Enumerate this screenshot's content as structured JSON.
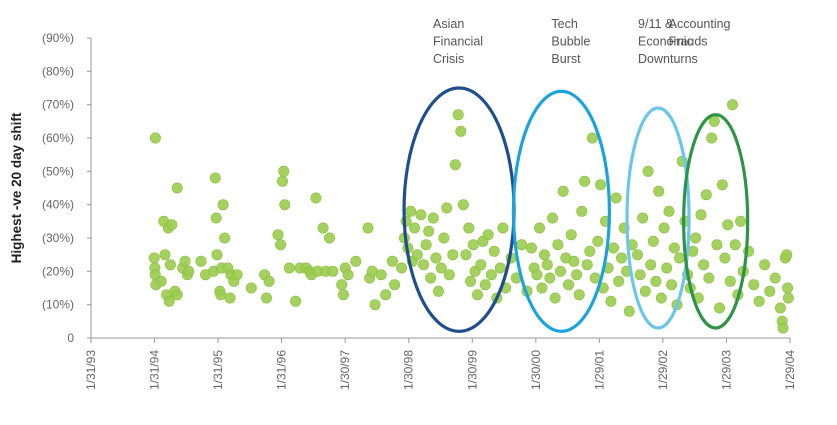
{
  "chart_data": {
    "type": "scatter",
    "title": "",
    "xlabel": "",
    "ylabel": "Highest -ve 20 day shift",
    "xlim": [
      "1993-01-31",
      "2004-01-29"
    ],
    "ylim": [
      0,
      90
    ],
    "x_ticks": [
      "1/31/93",
      "1/31/94",
      "1/31/95",
      "1/31/96",
      "1/30/97",
      "1/30/98",
      "1/30/99",
      "1/30/00",
      "1/29/01",
      "1/29/02",
      "1/29/03",
      "1/29/04"
    ],
    "y_ticks": [
      {
        "value": 0,
        "label": "0"
      },
      {
        "value": 10,
        "label": "(10%)"
      },
      {
        "value": 20,
        "label": "(20%)"
      },
      {
        "value": 30,
        "label": "(30%)"
      },
      {
        "value": 40,
        "label": "(40%)"
      },
      {
        "value": 50,
        "label": "(50%)"
      },
      {
        "value": 60,
        "label": "(60%)"
      },
      {
        "value": 70,
        "label": "(70%)"
      },
      {
        "value": 80,
        "label": "(80%)"
      },
      {
        "value": 90,
        "label": "(90%)"
      }
    ],
    "grid": false,
    "point_color": "#9bcc50",
    "series": [
      {
        "points": [
          [
            "1994-02-05",
            60
          ],
          [
            "1994-01-29",
            24
          ],
          [
            "1994-02-02",
            21
          ],
          [
            "1994-02-04",
            19
          ],
          [
            "1994-02-08",
            16
          ],
          [
            "1994-03-10",
            17
          ],
          [
            "1994-03-25",
            35
          ],
          [
            "1994-04-01",
            25
          ],
          [
            "1994-04-10",
            13
          ],
          [
            "1994-04-20",
            33
          ],
          [
            "1994-04-25",
            11
          ],
          [
            "1994-05-02",
            22
          ],
          [
            "1994-05-10",
            34
          ],
          [
            "1994-05-28",
            14
          ],
          [
            "1994-06-10",
            13
          ],
          [
            "1994-06-10",
            45
          ],
          [
            "1994-07-12",
            21
          ],
          [
            "1994-07-25",
            23
          ],
          [
            "1994-08-08",
            19
          ],
          [
            "1994-08-15",
            20
          ],
          [
            "1994-10-25",
            23
          ],
          [
            "1994-11-20",
            19
          ],
          [
            "1995-01-05",
            20
          ],
          [
            "1995-01-15",
            48
          ],
          [
            "1995-01-20",
            36
          ],
          [
            "1995-01-25",
            25
          ],
          [
            "1995-02-10",
            14
          ],
          [
            "1995-02-15",
            13
          ],
          [
            "1995-02-20",
            21
          ],
          [
            "1995-03-01",
            40
          ],
          [
            "1995-03-10",
            30
          ],
          [
            "1995-03-28",
            21
          ],
          [
            "1995-04-10",
            12
          ],
          [
            "1995-04-15",
            19
          ],
          [
            "1995-05-01",
            17
          ],
          [
            "1995-05-20",
            19
          ],
          [
            "1995-08-10",
            15
          ],
          [
            "1995-10-25",
            19
          ],
          [
            "1995-11-05",
            12
          ],
          [
            "1995-11-20",
            17
          ],
          [
            "1996-01-10",
            31
          ],
          [
            "1996-01-25",
            28
          ],
          [
            "1996-02-05",
            47
          ],
          [
            "1996-02-12",
            50
          ],
          [
            "1996-02-18",
            40
          ],
          [
            "1996-03-15",
            21
          ],
          [
            "1996-04-20",
            11
          ],
          [
            "1996-05-15",
            21
          ],
          [
            "1996-06-20",
            21
          ],
          [
            "1996-07-10",
            20
          ],
          [
            "1996-07-20",
            19
          ],
          [
            "1996-08-15",
            42
          ],
          [
            "1996-08-25",
            20
          ],
          [
            "1996-09-25",
            33
          ],
          [
            "1996-10-10",
            20
          ],
          [
            "1996-11-01",
            30
          ],
          [
            "1996-11-20",
            20
          ],
          [
            "1997-01-10",
            16
          ],
          [
            "1997-01-20",
            13
          ],
          [
            "1997-01-30",
            21
          ],
          [
            "1997-02-15",
            19
          ],
          [
            "1997-04-01",
            23
          ],
          [
            "1997-06-10",
            33
          ],
          [
            "1997-06-20",
            18
          ],
          [
            "1997-07-05",
            20
          ],
          [
            "1997-07-20",
            10
          ],
          [
            "1997-08-25",
            19
          ],
          [
            "1997-09-20",
            13
          ],
          [
            "1997-10-28",
            23
          ],
          [
            "1997-11-10",
            16
          ],
          [
            "1997-12-20",
            21
          ],
          [
            "1998-01-05",
            30
          ],
          [
            "1998-01-15",
            35
          ],
          [
            "1998-01-25",
            27
          ],
          [
            "1998-02-10",
            38
          ],
          [
            "1998-02-20",
            23
          ],
          [
            "1998-03-05",
            33
          ],
          [
            "1998-03-20",
            25
          ],
          [
            "1998-04-10",
            37
          ],
          [
            "1998-04-25",
            22
          ],
          [
            "1998-05-10",
            28
          ],
          [
            "1998-05-25",
            32
          ],
          [
            "1998-06-05",
            18
          ],
          [
            "1998-06-20",
            36
          ],
          [
            "1998-07-05",
            24
          ],
          [
            "1998-07-20",
            14
          ],
          [
            "1998-08-05",
            21
          ],
          [
            "1998-08-20",
            30
          ],
          [
            "1998-09-05",
            39
          ],
          [
            "1998-09-20",
            19
          ],
          [
            "1998-10-10",
            25
          ],
          [
            "1998-10-25",
            52
          ],
          [
            "1998-11-10",
            67
          ],
          [
            "1998-11-25",
            62
          ],
          [
            "1998-12-10",
            40
          ],
          [
            "1998-12-25",
            25
          ],
          [
            "1999-01-10",
            33
          ],
          [
            "1999-01-20",
            17
          ],
          [
            "1999-02-05",
            28
          ],
          [
            "1999-02-15",
            20
          ],
          [
            "1999-03-01",
            13
          ],
          [
            "1999-03-20",
            22
          ],
          [
            "1999-04-01",
            29
          ],
          [
            "1999-04-15",
            16
          ],
          [
            "1999-05-01",
            31
          ],
          [
            "1999-05-20",
            19
          ],
          [
            "1999-06-05",
            26
          ],
          [
            "1999-06-20",
            12
          ],
          [
            "1999-07-10",
            21
          ],
          [
            "1999-07-25",
            33
          ],
          [
            "1999-08-10",
            15
          ],
          [
            "1999-09-10",
            24
          ],
          [
            "1999-10-10",
            18
          ],
          [
            "1999-11-10",
            28
          ],
          [
            "1999-12-10",
            14
          ],
          [
            "2000-01-05",
            27
          ],
          [
            "2000-01-20",
            21
          ],
          [
            "2000-02-05",
            19
          ],
          [
            "2000-02-20",
            33
          ],
          [
            "2000-03-05",
            15
          ],
          [
            "2000-03-20",
            25
          ],
          [
            "2000-04-05",
            22
          ],
          [
            "2000-04-20",
            18
          ],
          [
            "2000-05-05",
            36
          ],
          [
            "2000-05-20",
            12
          ],
          [
            "2000-06-05",
            28
          ],
          [
            "2000-06-20",
            20
          ],
          [
            "2000-07-05",
            44
          ],
          [
            "2000-07-20",
            24
          ],
          [
            "2000-08-05",
            16
          ],
          [
            "2000-08-20",
            31
          ],
          [
            "2000-09-05",
            23
          ],
          [
            "2000-09-20",
            19
          ],
          [
            "2000-10-05",
            13
          ],
          [
            "2000-10-20",
            38
          ],
          [
            "2000-11-05",
            47
          ],
          [
            "2000-11-20",
            22
          ],
          [
            "2000-12-05",
            26
          ],
          [
            "2000-12-20",
            60
          ],
          [
            "2001-01-05",
            18
          ],
          [
            "2001-01-20",
            29
          ],
          [
            "2001-02-05",
            46
          ],
          [
            "2001-02-20",
            15
          ],
          [
            "2001-03-05",
            35
          ],
          [
            "2001-03-20",
            21
          ],
          [
            "2001-04-05",
            11
          ],
          [
            "2001-04-20",
            27
          ],
          [
            "2001-05-05",
            42
          ],
          [
            "2001-05-20",
            17
          ],
          [
            "2001-06-05",
            24
          ],
          [
            "2001-06-20",
            33
          ],
          [
            "2001-07-05",
            20
          ],
          [
            "2001-07-20",
            8
          ],
          [
            "2001-08-05",
            28
          ],
          [
            "2001-09-05",
            25
          ],
          [
            "2001-09-20",
            19
          ],
          [
            "2001-10-05",
            36
          ],
          [
            "2001-10-20",
            14
          ],
          [
            "2001-11-05",
            50
          ],
          [
            "2001-11-20",
            22
          ],
          [
            "2001-12-05",
            29
          ],
          [
            "2001-12-20",
            17
          ],
          [
            "2002-01-05",
            44
          ],
          [
            "2002-01-20",
            12
          ],
          [
            "2002-02-05",
            33
          ],
          [
            "2002-02-20",
            21
          ],
          [
            "2002-03-05",
            38
          ],
          [
            "2002-03-20",
            16
          ],
          [
            "2002-04-05",
            27
          ],
          [
            "2002-04-20",
            10
          ],
          [
            "2002-05-05",
            24
          ],
          [
            "2002-05-20",
            53
          ],
          [
            "2002-06-05",
            35
          ],
          [
            "2002-06-20",
            19
          ],
          [
            "2002-07-05",
            15
          ],
          [
            "2002-07-20",
            26
          ],
          [
            "2002-08-05",
            30
          ],
          [
            "2002-08-20",
            12
          ],
          [
            "2002-09-05",
            37
          ],
          [
            "2002-09-20",
            22
          ],
          [
            "2002-10-05",
            43
          ],
          [
            "2002-10-20",
            18
          ],
          [
            "2002-11-05",
            60
          ],
          [
            "2002-11-20",
            65
          ],
          [
            "2002-12-05",
            28
          ],
          [
            "2002-12-20",
            9
          ],
          [
            "2003-01-05",
            46
          ],
          [
            "2003-01-20",
            24
          ],
          [
            "2003-02-05",
            34
          ],
          [
            "2003-02-20",
            17
          ],
          [
            "2003-03-05",
            70
          ],
          [
            "2003-03-20",
            28
          ],
          [
            "2003-04-05",
            13
          ],
          [
            "2003-04-20",
            35
          ],
          [
            "2003-05-05",
            20
          ],
          [
            "2003-06-05",
            26
          ],
          [
            "2003-07-05",
            16
          ],
          [
            "2003-08-05",
            11
          ],
          [
            "2003-09-05",
            22
          ],
          [
            "2003-10-05",
            14
          ],
          [
            "2003-11-05",
            18
          ],
          [
            "2003-12-05",
            9
          ],
          [
            "2004-01-02",
            24
          ],
          [
            "2004-01-10",
            25
          ],
          [
            "2004-01-15",
            15
          ],
          [
            "2004-01-20",
            12
          ],
          [
            "2003-12-15",
            5
          ],
          [
            "2003-12-20",
            3
          ]
        ]
      }
    ],
    "annotations": [
      {
        "lines": [
          "Asian",
          "Financial",
          "Crisis"
        ],
        "color": "#1f4e8c",
        "center": "1998-11-15",
        "vmin": 2,
        "vmax": 75
      },
      {
        "lines": [
          "Tech",
          "Bubble",
          "Burst"
        ],
        "color": "#1aa3dc",
        "center": "2000-06-25",
        "vmin": 2,
        "vmax": 74
      },
      {
        "lines": [
          "9/11 &",
          "Economic",
          "Downturns"
        ],
        "color": "#6cc6ec",
        "center": "2002-01-01",
        "vmin": 3,
        "vmax": 69
      },
      {
        "lines": [
          "Accounting",
          "Frauds"
        ],
        "color": "#2e9446",
        "center": "2002-11-28",
        "vmin": 3,
        "vmax": 67
      }
    ]
  }
}
